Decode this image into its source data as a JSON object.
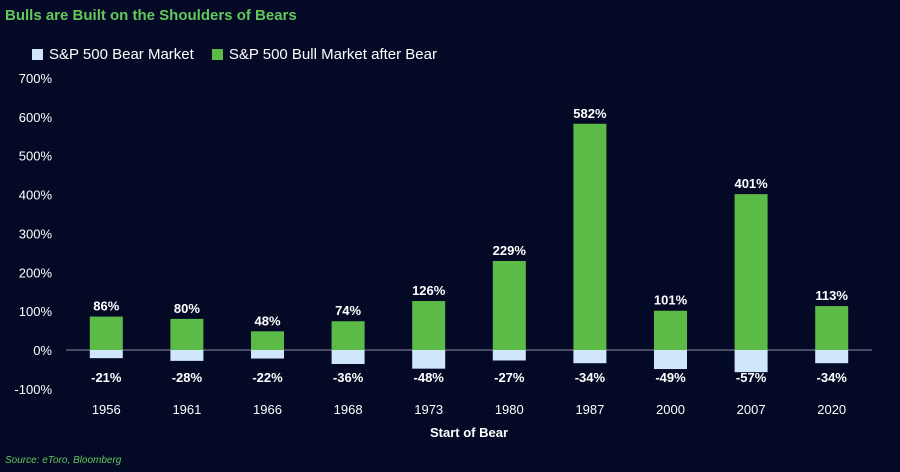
{
  "title": "Bulls are Built on the Shoulders of Bears",
  "source": "Source: eToro, Bloomberg",
  "colors": {
    "background": "#040a26",
    "bear": "#cfe6fb",
    "bull": "#5cbb46",
    "title": "#62c85a"
  },
  "chart_data": {
    "type": "bar",
    "title": "Bulls are Built on the Shoulders of Bears",
    "xlabel": "Start of Bear",
    "ylabel": "",
    "ylim": [
      -100,
      700
    ],
    "yticks": [
      -100,
      0,
      100,
      200,
      300,
      400,
      500,
      600,
      700
    ],
    "ytick_labels": [
      "-100%",
      "0%",
      "100%",
      "200%",
      "300%",
      "400%",
      "500%",
      "600%",
      "700%"
    ],
    "categories": [
      "1956",
      "1961",
      "1966",
      "1968",
      "1973",
      "1980",
      "1987",
      "2000",
      "2007",
      "2020"
    ],
    "series": [
      {
        "name": "S&P 500 Bear Market",
        "color": "#cfe6fb",
        "values": [
          -21,
          -28,
          -22,
          -36,
          -48,
          -27,
          -34,
          -49,
          -57,
          -34
        ],
        "labels": [
          "-21%",
          "-28%",
          "-22%",
          "-36%",
          "-48%",
          "-27%",
          "-34%",
          "-49%",
          "-57%",
          "-34%"
        ]
      },
      {
        "name": "S&P 500 Bull Market after Bear",
        "color": "#5cbb46",
        "values": [
          86,
          80,
          48,
          74,
          126,
          229,
          582,
          101,
          401,
          113
        ],
        "labels": [
          "86%",
          "80%",
          "48%",
          "74%",
          "126%",
          "229%",
          "582%",
          "101%",
          "401%",
          "113%"
        ]
      }
    ],
    "legend": "top-left",
    "grid": false
  }
}
